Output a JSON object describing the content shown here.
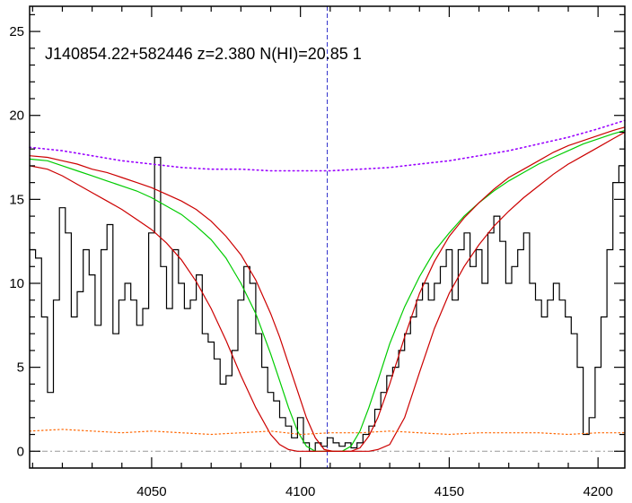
{
  "chart_data": {
    "type": "line",
    "title": "J140854.22+582446 z=2.380 N(HI)=20.85 1",
    "xlabel": "",
    "ylabel": "",
    "xlim": [
      4009,
      4209
    ],
    "ylim": [
      -1,
      26.5
    ],
    "xticks": [
      4050,
      4100,
      4150,
      4200
    ],
    "yticks": [
      0,
      5,
      10,
      15,
      20,
      25
    ],
    "grid": false,
    "legend": "none",
    "vline_x": 4109,
    "colors": {
      "flux": "#000000",
      "fit": "#00cc00",
      "fit_bounds": "#cc0000",
      "continuum": "#9900ff",
      "error": "#ff6600",
      "zero_line": "#999999",
      "center_line": "#3333cc"
    },
    "series": [
      {
        "x": [
          4009,
          4011,
          4013,
          4015,
          4017,
          4019,
          4021,
          4023,
          4025,
          4027,
          4029,
          4031,
          4033,
          4035,
          4037,
          4039,
          4041,
          4043,
          4045,
          4047,
          4049,
          4051,
          4053,
          4055,
          4057,
          4059,
          4061,
          4063,
          4065,
          4067,
          4069,
          4071,
          4073,
          4075,
          4077,
          4079,
          4081,
          4083,
          4085,
          4087,
          4089,
          4091,
          4093,
          4095,
          4097,
          4099,
          4101,
          4103,
          4105,
          4107,
          4109,
          4111,
          4113,
          4115,
          4117,
          4119,
          4121,
          4123,
          4125,
          4127,
          4129,
          4131,
          4133,
          4135,
          4137,
          4139,
          4141,
          4143,
          4145,
          4147,
          4149,
          4151,
          4153,
          4155,
          4157,
          4159,
          4161,
          4163,
          4165,
          4167,
          4169,
          4171,
          4173,
          4175,
          4177,
          4179,
          4181,
          4183,
          4185,
          4187,
          4189,
          4191,
          4193,
          4195,
          4197,
          4199,
          4201,
          4203,
          4205,
          4207,
          4209
        ],
        "y": [
          12,
          11.5,
          8,
          3.5,
          9,
          14.5,
          13,
          8,
          9.5,
          12,
          10.5,
          7.5,
          12,
          13.5,
          7,
          9,
          10,
          9,
          7.5,
          8.5,
          13,
          17.5,
          11,
          8.5,
          12,
          10,
          8.5,
          9,
          10.5,
          7,
          6.5,
          5.5,
          4,
          4.5,
          6,
          9,
          11,
          10,
          7,
          5,
          3.5,
          3,
          2,
          1.5,
          0.8,
          2,
          0.5,
          0,
          0.5,
          0.3,
          0.8,
          0.5,
          0.3,
          0.5,
          0.2,
          0.5,
          1,
          1.5,
          2.5,
          3.5,
          4.5,
          5,
          6,
          7,
          8,
          9,
          10,
          9,
          10,
          11,
          12,
          9,
          12,
          13,
          11,
          12,
          10,
          13,
          14,
          12.5,
          10,
          11,
          12,
          13,
          10,
          9,
          8,
          9,
          10,
          9,
          8,
          7,
          5,
          1,
          2,
          5,
          8,
          12,
          16,
          17,
          18.5
        ]
      },
      {
        "name": "",
        "x": [
          4009,
          4015,
          4020,
          4025,
          4030,
          4035,
          4040,
          4045,
          4050,
          4055,
          4060,
          4065,
          4070,
          4075,
          4080,
          4085,
          4090,
          4093,
          4096,
          4099,
          4102,
          4105,
          4108,
          4111,
          4114,
          4117,
          4120,
          4123,
          4126,
          4130,
          4135,
          4140,
          4145,
          4150,
          4155,
          4160,
          4165,
          4170,
          4175,
          4180,
          4185,
          4190,
          4195,
          4200,
          4205,
          4209
        ],
        "y": [
          17.4,
          17.3,
          17,
          16.7,
          16.4,
          16.1,
          15.8,
          15.5,
          15.1,
          14.6,
          14.1,
          13.4,
          12.6,
          11.5,
          10,
          8.2,
          5.8,
          4.2,
          2.6,
          1.2,
          0.3,
          0,
          0,
          0,
          0,
          0.3,
          1.2,
          2.6,
          4.2,
          6.4,
          8.6,
          10.4,
          11.9,
          13,
          14,
          14.8,
          15.5,
          16.1,
          16.6,
          17.1,
          17.5,
          17.9,
          18.3,
          18.6,
          18.9,
          19.1
        ]
      },
      {
        "name": "",
        "x": [
          4009,
          4015,
          4020,
          4025,
          4030,
          4035,
          4040,
          4045,
          4050,
          4055,
          4060,
          4065,
          4070,
          4075,
          4080,
          4085,
          4090,
          4093,
          4096,
          4099,
          4102,
          4105,
          4108,
          4111,
          4114,
          4117,
          4120,
          4123,
          4126,
          4130,
          4135,
          4140,
          4145,
          4150,
          4155,
          4160,
          4165,
          4170,
          4175,
          4180,
          4185,
          4190,
          4195,
          4200,
          4205,
          4209
        ],
        "y": [
          17.6,
          17.5,
          17.3,
          17.1,
          16.8,
          16.6,
          16.3,
          16,
          15.7,
          15.3,
          14.9,
          14.4,
          13.7,
          12.8,
          11.7,
          10.2,
          8.2,
          6.8,
          5.2,
          3.6,
          2,
          0.8,
          0.1,
          0,
          0,
          0,
          0.2,
          0.9,
          2,
          4,
          6.8,
          9.4,
          11.3,
          12.8,
          13.9,
          14.8,
          15.6,
          16.3,
          16.8,
          17.3,
          17.8,
          18.2,
          18.5,
          18.8,
          19.1,
          19.3
        ]
      },
      {
        "name": "",
        "x": [
          4009,
          4015,
          4020,
          4025,
          4030,
          4035,
          4040,
          4045,
          4050,
          4055,
          4060,
          4065,
          4070,
          4075,
          4080,
          4085,
          4090,
          4093,
          4096,
          4099,
          4102,
          4105,
          4108,
          4111,
          4114,
          4117,
          4120,
          4123,
          4126,
          4130,
          4135,
          4140,
          4145,
          4150,
          4155,
          4160,
          4165,
          4170,
          4175,
          4180,
          4185,
          4190,
          4195,
          4200,
          4205,
          4209
        ],
        "y": [
          17,
          16.8,
          16.4,
          15.9,
          15.4,
          14.9,
          14.4,
          13.8,
          13.2,
          12.4,
          11.4,
          10.1,
          8.5,
          6.6,
          4.5,
          2.6,
          1,
          0.4,
          0.1,
          0,
          0,
          0,
          0,
          0,
          0,
          0,
          0,
          0,
          0.1,
          0.4,
          2,
          4.7,
          7.3,
          9.4,
          11,
          12.3,
          13.4,
          14.3,
          15.1,
          15.8,
          16.5,
          17.1,
          17.6,
          18.1,
          18.6,
          19
        ]
      },
      {
        "name": "",
        "x": [
          4009,
          4020,
          4030,
          4040,
          4050,
          4060,
          4070,
          4080,
          4090,
          4100,
          4110,
          4120,
          4130,
          4140,
          4150,
          4160,
          4170,
          4180,
          4190,
          4200,
          4209
        ],
        "y": [
          18.1,
          17.9,
          17.6,
          17.3,
          17.1,
          16.9,
          16.8,
          16.8,
          16.7,
          16.7,
          16.7,
          16.8,
          16.9,
          17.1,
          17.3,
          17.6,
          17.9,
          18.3,
          18.7,
          19.2,
          19.7
        ]
      },
      {
        "name": "",
        "x": [
          4009,
          4020,
          4030,
          4040,
          4050,
          4060,
          4070,
          4080,
          4090,
          4100,
          4110,
          4120,
          4130,
          4140,
          4150,
          4160,
          4170,
          4180,
          4190,
          4200,
          4209
        ],
        "y": [
          1.2,
          1.3,
          1.2,
          1.1,
          1.2,
          1.1,
          1,
          1.1,
          1.2,
          1,
          1.1,
          1.1,
          1.2,
          1.1,
          1,
          1.1,
          1.1,
          1.1,
          1,
          1.1,
          1.1
        ]
      }
    ]
  }
}
